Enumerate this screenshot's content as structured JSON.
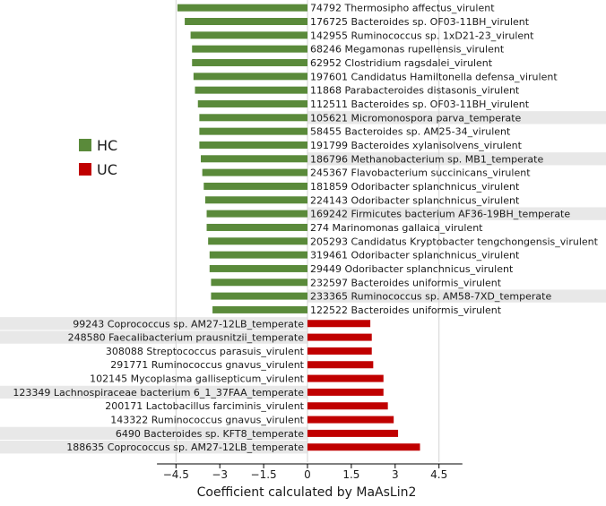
{
  "chart_data": {
    "type": "bar",
    "orientation": "horizontal",
    "xlabel": "Coefficient calculated by MaAsLin2",
    "xlim": [
      -5.2,
      5.4
    ],
    "xticks": [
      -4.5,
      -3,
      -1.5,
      0,
      1.5,
      3,
      4.5
    ],
    "xtick_labels": [
      "−4.5",
      "−3",
      "−1.5",
      "0",
      "1.5",
      "3",
      "4.5"
    ],
    "gridlines": [
      -4.5,
      0,
      4.5
    ],
    "legend": [
      {
        "label": "HC",
        "color": "#5a8a3a"
      },
      {
        "label": "UC",
        "color": "#c00000"
      }
    ],
    "highlight_color": "#e8e8e8",
    "series": [
      {
        "name": "HC",
        "color": "#5a8a3a",
        "items": [
          {
            "label": "74792  Thermosipho affectus_virulent",
            "value": -4.45,
            "highlight": false
          },
          {
            "label": "176725 Bacteroides sp. OF03-11BH_virulent",
            "value": -4.2,
            "highlight": false
          },
          {
            "label": "142955 Ruminococcus sp. 1xD21-23_virulent",
            "value": -4.0,
            "highlight": false
          },
          {
            "label": "68246  Megamonas rupellensis_virulent",
            "value": -3.95,
            "highlight": false
          },
          {
            "label": "62952  Clostridium ragsdalei_virulent",
            "value": -3.95,
            "highlight": false
          },
          {
            "label": "197601 Candidatus Hamiltonella defensa_virulent",
            "value": -3.9,
            "highlight": false
          },
          {
            "label": "11868  Parabacteroides distasonis_virulent",
            "value": -3.85,
            "highlight": false
          },
          {
            "label": "112511 Bacteroides sp. OF03-11BH_virulent",
            "value": -3.75,
            "highlight": false
          },
          {
            "label": "105621 Micromonospora parva_temperate",
            "value": -3.7,
            "highlight": true
          },
          {
            "label": "58455  Bacteroides sp. AM25-34_virulent",
            "value": -3.7,
            "highlight": false
          },
          {
            "label": "191799 Bacteroides xylanisolvens_virulent",
            "value": -3.7,
            "highlight": false
          },
          {
            "label": "186796 Methanobacterium sp. MB1_temperate",
            "value": -3.65,
            "highlight": true
          },
          {
            "label": "245367 Flavobacterium succinicans_virulent",
            "value": -3.6,
            "highlight": false
          },
          {
            "label": "181859 Odoribacter splanchnicus_virulent",
            "value": -3.55,
            "highlight": false
          },
          {
            "label": "224143 Odoribacter splanchnicus_virulent",
            "value": -3.5,
            "highlight": false
          },
          {
            "label": "169242 Firmicutes bacterium AF36-19BH_temperate",
            "value": -3.45,
            "highlight": true
          },
          {
            "label": "274    Marinomonas gallaica_virulent",
            "value": -3.45,
            "highlight": false
          },
          {
            "label": "205293 Candidatus Kryptobacter tengchongensis_virulent",
            "value": -3.4,
            "highlight": false
          },
          {
            "label": "319461 Odoribacter splanchnicus_virulent",
            "value": -3.35,
            "highlight": false
          },
          {
            "label": "29449  Odoribacter splanchnicus_virulent",
            "value": -3.35,
            "highlight": false
          },
          {
            "label": "232597 Bacteroides uniformis_virulent",
            "value": -3.3,
            "highlight": false
          },
          {
            "label": "233365 Ruminococcus sp. AM58-7XD_temperate",
            "value": -3.3,
            "highlight": true
          },
          {
            "label": "122522 Bacteroides uniformis_virulent",
            "value": -3.25,
            "highlight": false
          }
        ]
      },
      {
        "name": "UC",
        "color": "#c00000",
        "items": [
          {
            "label": "99243 Coprococcus sp. AM27-12LB_temperate",
            "value": 2.15,
            "highlight": true
          },
          {
            "label": "248580 Faecalibacterium prausnitzii_temperate",
            "value": 2.2,
            "highlight": true
          },
          {
            "label": "308088 Streptococcus parasuis_virulent",
            "value": 2.2,
            "highlight": false
          },
          {
            "label": "291771 Ruminococcus gnavus_virulent",
            "value": 2.25,
            "highlight": false
          },
          {
            "label": "102145 Mycoplasma gallisepticum_virulent",
            "value": 2.6,
            "highlight": false
          },
          {
            "label": "123349 Lachnospiraceae bacterium 6_1_37FAA_temperate",
            "value": 2.6,
            "highlight": true
          },
          {
            "label": "200171 Lactobacillus farciminis_virulent",
            "value": 2.75,
            "highlight": false
          },
          {
            "label": "143322 Ruminococcus gnavus_virulent",
            "value": 2.95,
            "highlight": false
          },
          {
            "label": "6490 Bacteroides sp. KFT8_temperate",
            "value": 3.1,
            "highlight": true
          },
          {
            "label": "188635 Coprococcus sp. AM27-12LB_temperate",
            "value": 3.85,
            "highlight": true
          }
        ]
      }
    ]
  }
}
